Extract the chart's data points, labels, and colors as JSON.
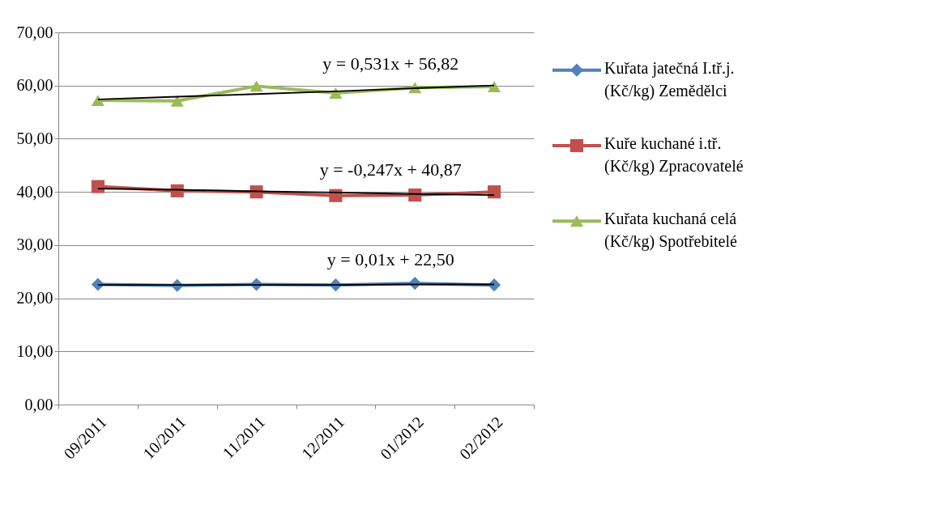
{
  "chart_data": {
    "type": "line",
    "categories": [
      "09/2011",
      "10/2011",
      "11/2011",
      "12/2011",
      "01/2012",
      "02/2012"
    ],
    "series": [
      {
        "name": "Kuřata jatečná I.tř.j. (Kč/kg) Zemědělci",
        "color": "#4f81bd",
        "marker": "diamond",
        "values": [
          22.6,
          22.4,
          22.6,
          22.5,
          22.8,
          22.5
        ]
      },
      {
        "name": "Kuře kuchané i.tř. (Kč/kg) Zpracovatelé",
        "color": "#c0504d",
        "marker": "square",
        "values": [
          41.0,
          40.2,
          40.0,
          39.3,
          39.4,
          40.0
        ]
      },
      {
        "name": "Kuřata kuchaná celá (Kč/kg) Spotřebitelé",
        "color": "#9bbb59",
        "marker": "triangle",
        "values": [
          57.2,
          57.1,
          59.9,
          58.6,
          59.6,
          59.8
        ]
      },
      {
        "type": "line",
        "color": "#000000",
        "marker": "none",
        "values": [
          22.5,
          22.5,
          22.5,
          22.5,
          22.6,
          22.6
        ]
      },
      {
        "type": "line",
        "color": "#000000",
        "marker": "none",
        "values": [
          40.6,
          40.4,
          40.1,
          39.9,
          39.6,
          39.4
        ]
      },
      {
        "type": "line",
        "color": "#000000",
        "marker": "none",
        "values": [
          57.4,
          57.9,
          58.4,
          58.9,
          59.5,
          60.0
        ]
      }
    ],
    "ylim": [
      0,
      70
    ],
    "yticks": [
      {
        "value": 0,
        "label": "0,00"
      },
      {
        "value": 10,
        "label": "10,00"
      },
      {
        "value": 20,
        "label": "20,00"
      },
      {
        "value": 30,
        "label": "30,00"
      },
      {
        "value": 40,
        "label": "40,00"
      },
      {
        "value": 50,
        "label": "50,00"
      },
      {
        "value": 60,
        "label": "60,00"
      },
      {
        "value": 70,
        "label": "70,00"
      }
    ],
    "grid": "y",
    "legend": "right",
    "annotations": [
      "y = 0,531x + 56,82",
      "y = -0,247x + 40,87",
      "y = 0,01x + 22,50"
    ]
  }
}
